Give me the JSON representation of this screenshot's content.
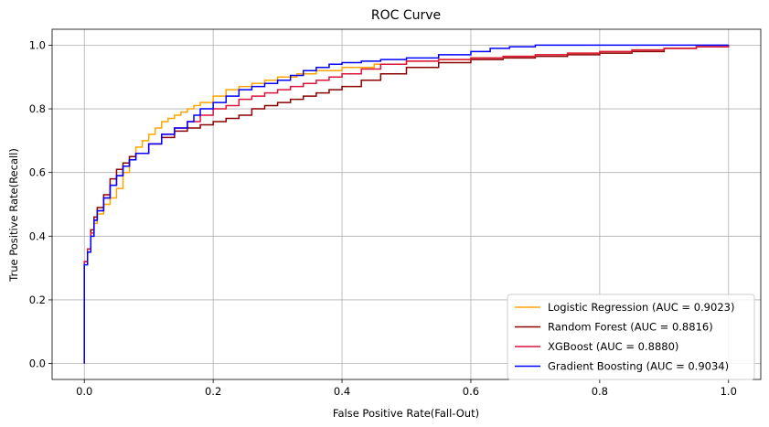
{
  "chart_data": {
    "type": "line",
    "title": "ROC Curve",
    "xlabel": "False Positive Rate(Fall-Out)",
    "ylabel": "True Positive Rate(Recall)",
    "xlim": [
      -0.05,
      1.05
    ],
    "ylim": [
      -0.05,
      1.05
    ],
    "xticks": [
      0.0,
      0.2,
      0.4,
      0.6,
      0.8,
      1.0
    ],
    "xtick_labels": [
      "0.0",
      "0.2",
      "0.4",
      "0.6",
      "0.8",
      "1.0"
    ],
    "yticks": [
      0.0,
      0.2,
      0.4,
      0.6,
      0.8,
      1.0
    ],
    "ytick_labels": [
      "0.0",
      "0.2",
      "0.4",
      "0.6",
      "0.8",
      "1.0"
    ],
    "grid": true,
    "legend_position": "lower-right",
    "step": true,
    "series": [
      {
        "name": "Logistic Regression (AUC = 0.9023)",
        "color": "#ffa500",
        "x": [
          0.0,
          0.0,
          0.005,
          0.01,
          0.015,
          0.02,
          0.03,
          0.04,
          0.05,
          0.06,
          0.07,
          0.08,
          0.09,
          0.1,
          0.11,
          0.12,
          0.13,
          0.14,
          0.15,
          0.16,
          0.17,
          0.18,
          0.2,
          0.22,
          0.24,
          0.26,
          0.28,
          0.3,
          0.33,
          0.36,
          0.4,
          0.45,
          0.5,
          0.55,
          0.6,
          0.65,
          0.7,
          0.75,
          0.8,
          0.85,
          0.9,
          0.95,
          1.0
        ],
        "y": [
          0.0,
          0.32,
          0.36,
          0.4,
          0.44,
          0.47,
          0.5,
          0.52,
          0.55,
          0.6,
          0.65,
          0.68,
          0.7,
          0.72,
          0.74,
          0.76,
          0.77,
          0.78,
          0.79,
          0.8,
          0.81,
          0.82,
          0.84,
          0.86,
          0.87,
          0.88,
          0.89,
          0.9,
          0.91,
          0.92,
          0.93,
          0.94,
          0.95,
          0.955,
          0.96,
          0.965,
          0.97,
          0.975,
          0.98,
          0.985,
          0.99,
          0.995,
          1.0
        ]
      },
      {
        "name": "Random Forest (AUC = 0.8816)",
        "color": "#8b0000",
        "x": [
          0.0,
          0.0,
          0.005,
          0.01,
          0.015,
          0.02,
          0.03,
          0.04,
          0.05,
          0.06,
          0.07,
          0.08,
          0.1,
          0.12,
          0.14,
          0.16,
          0.18,
          0.2,
          0.22,
          0.24,
          0.26,
          0.28,
          0.3,
          0.32,
          0.34,
          0.36,
          0.38,
          0.4,
          0.43,
          0.46,
          0.5,
          0.55,
          0.6,
          0.65,
          0.7,
          0.75,
          0.8,
          0.85,
          0.9,
          0.95,
          1.0
        ],
        "y": [
          0.0,
          0.32,
          0.36,
          0.42,
          0.46,
          0.49,
          0.53,
          0.58,
          0.61,
          0.63,
          0.65,
          0.66,
          0.69,
          0.71,
          0.73,
          0.74,
          0.75,
          0.76,
          0.77,
          0.78,
          0.8,
          0.81,
          0.82,
          0.83,
          0.84,
          0.85,
          0.86,
          0.87,
          0.89,
          0.91,
          0.93,
          0.945,
          0.955,
          0.96,
          0.965,
          0.97,
          0.975,
          0.98,
          0.99,
          0.995,
          1.0
        ]
      },
      {
        "name": "XGBoost (AUC = 0.8880)",
        "color": "#dc143c",
        "x": [
          0.0,
          0.0,
          0.005,
          0.01,
          0.015,
          0.02,
          0.03,
          0.04,
          0.05,
          0.06,
          0.07,
          0.08,
          0.1,
          0.12,
          0.14,
          0.16,
          0.18,
          0.2,
          0.22,
          0.24,
          0.26,
          0.28,
          0.3,
          0.32,
          0.34,
          0.36,
          0.38,
          0.4,
          0.43,
          0.46,
          0.5,
          0.55,
          0.6,
          0.65,
          0.7,
          0.75,
          0.8,
          0.85,
          0.9,
          0.95,
          1.0
        ],
        "y": [
          0.0,
          0.32,
          0.36,
          0.41,
          0.45,
          0.48,
          0.52,
          0.56,
          0.59,
          0.62,
          0.64,
          0.66,
          0.69,
          0.72,
          0.74,
          0.76,
          0.78,
          0.8,
          0.81,
          0.83,
          0.84,
          0.85,
          0.86,
          0.87,
          0.88,
          0.89,
          0.9,
          0.91,
          0.925,
          0.94,
          0.95,
          0.955,
          0.96,
          0.965,
          0.97,
          0.975,
          0.98,
          0.985,
          0.99,
          0.995,
          1.0
        ]
      },
      {
        "name": "Gradient Boosting (AUC = 0.9034)",
        "color": "#0000ff",
        "x": [
          0.0,
          0.0,
          0.005,
          0.01,
          0.015,
          0.02,
          0.03,
          0.04,
          0.05,
          0.06,
          0.07,
          0.08,
          0.1,
          0.12,
          0.14,
          0.16,
          0.17,
          0.18,
          0.2,
          0.22,
          0.24,
          0.26,
          0.28,
          0.3,
          0.32,
          0.34,
          0.36,
          0.38,
          0.4,
          0.43,
          0.46,
          0.5,
          0.55,
          0.6,
          0.63,
          0.66,
          0.7,
          0.75,
          0.8,
          0.85,
          0.9,
          0.95,
          1.0
        ],
        "y": [
          0.0,
          0.31,
          0.35,
          0.4,
          0.45,
          0.48,
          0.52,
          0.56,
          0.59,
          0.62,
          0.64,
          0.66,
          0.69,
          0.72,
          0.74,
          0.76,
          0.78,
          0.8,
          0.82,
          0.84,
          0.86,
          0.87,
          0.88,
          0.89,
          0.905,
          0.92,
          0.93,
          0.94,
          0.945,
          0.95,
          0.955,
          0.96,
          0.97,
          0.98,
          0.99,
          0.995,
          1.0,
          1.0,
          1.0,
          1.0,
          1.0,
          1.0,
          1.0
        ]
      }
    ]
  }
}
